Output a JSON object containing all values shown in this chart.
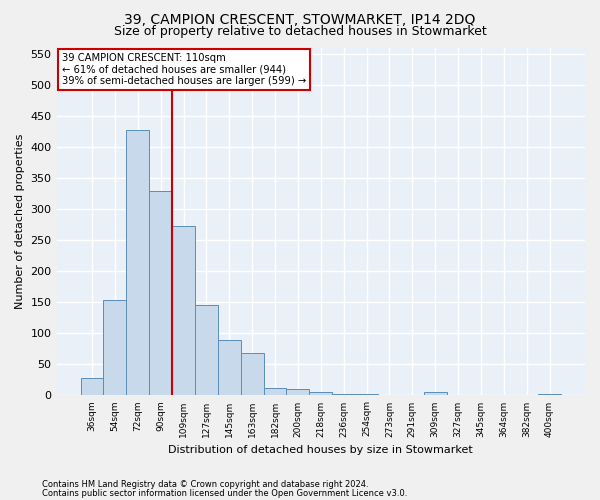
{
  "title1": "39, CAMPION CRESCENT, STOWMARKET, IP14 2DQ",
  "title2": "Size of property relative to detached houses in Stowmarket",
  "xlabel": "Distribution of detached houses by size in Stowmarket",
  "ylabel": "Number of detached properties",
  "categories": [
    "36sqm",
    "54sqm",
    "72sqm",
    "90sqm",
    "109sqm",
    "127sqm",
    "145sqm",
    "163sqm",
    "182sqm",
    "200sqm",
    "218sqm",
    "236sqm",
    "254sqm",
    "273sqm",
    "291sqm",
    "309sqm",
    "327sqm",
    "345sqm",
    "364sqm",
    "382sqm",
    "400sqm"
  ],
  "values": [
    28,
    153,
    428,
    329,
    272,
    145,
    90,
    68,
    12,
    10,
    5,
    3,
    2,
    1,
    1,
    5,
    1,
    1,
    1,
    1,
    3
  ],
  "bar_color": "#c9d9ec",
  "bar_edge_color": "#5b8db8",
  "vline_x": 4,
  "vline_color": "#cc0000",
  "ylim": [
    0,
    560
  ],
  "yticks": [
    0,
    50,
    100,
    150,
    200,
    250,
    300,
    350,
    400,
    450,
    500,
    550
  ],
  "annotation_title": "39 CAMPION CRESCENT: 110sqm",
  "annotation_line1": "← 61% of detached houses are smaller (944)",
  "annotation_line2": "39% of semi-detached houses are larger (599) →",
  "annotation_box_color": "#ffffff",
  "annotation_box_edge": "#cc0000",
  "footer1": "Contains HM Land Registry data © Crown copyright and database right 2024.",
  "footer2": "Contains public sector information licensed under the Open Government Licence v3.0.",
  "bg_color": "#eaf0f8",
  "fig_bg_color": "#f0f0f0",
  "grid_color": "#ffffff",
  "title1_fontsize": 10,
  "title2_fontsize": 9,
  "xlabel_fontsize": 8,
  "ylabel_fontsize": 8
}
